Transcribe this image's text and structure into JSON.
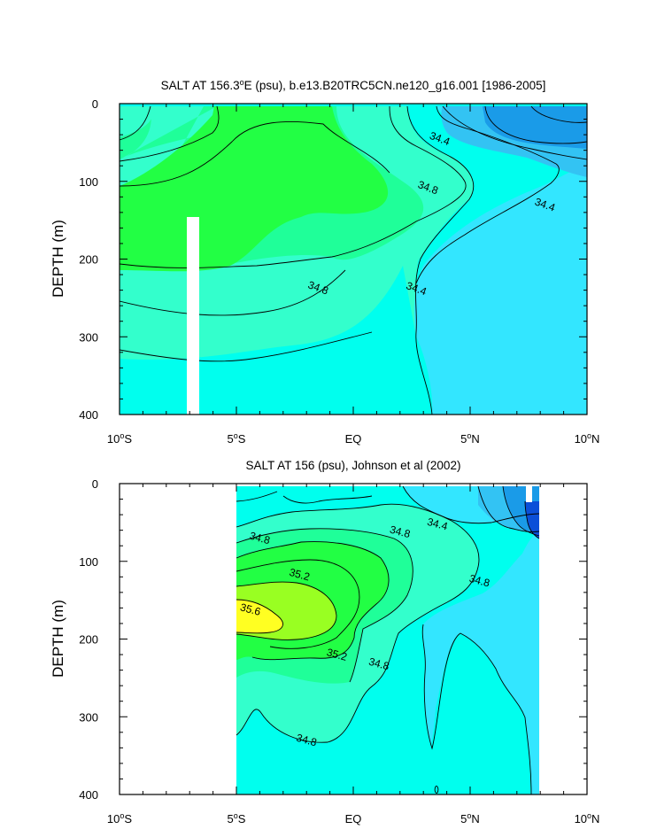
{
  "chart_data": [
    {
      "type": "heatmap",
      "title": "SALT AT 156.3°E (psu), b.e13.B20TRC5CN.ne120_g16.001 [1986-2005]",
      "title_sup": "o",
      "ylabel": "DEPTH (m)",
      "xlabel": "",
      "xlim": [
        -10,
        10
      ],
      "ylim": [
        400,
        0
      ],
      "xticks": [
        -10,
        -5,
        0,
        5,
        10
      ],
      "xtick_labels": [
        [
          "10",
          "o",
          "S"
        ],
        [
          "5",
          "o",
          "S"
        ],
        [
          "EQ",
          "",
          ""
        ],
        [
          "5",
          "o",
          "N"
        ],
        [
          "10",
          "o",
          "N"
        ]
      ],
      "yticks": [
        0,
        100,
        200,
        300,
        400
      ],
      "ytick_labels": [
        "0",
        "100",
        "200",
        "300",
        "400"
      ],
      "contour_interval": 0.2,
      "colors": {
        "fills": [
          "#1a9be8",
          "#33c3f3",
          "#33e6ff",
          "#00ffee",
          "#33ffcc",
          "#1fff99",
          "#22ff44",
          "#99ff22",
          "#ffff22"
        ],
        "line": "#000000",
        "gap": "#ffffff"
      },
      "contour_labels": [
        {
          "text": "34.8",
          "x": -1.5,
          "y": 237
        },
        {
          "text": "34.4",
          "x": 3.7,
          "y": 45
        },
        {
          "text": "34.8",
          "x": 3.2,
          "y": 108
        },
        {
          "text": "34.4",
          "x": 2.7,
          "y": 238
        },
        {
          "text": "34.4",
          "x": 8.2,
          "y": 130
        }
      ],
      "data_gap": {
        "x": [
          -7.5,
          -7.0
        ],
        "depth": [
          145,
          400
        ]
      }
    },
    {
      "type": "heatmap",
      "title": "SALT AT 156 (psu), Johnson et al (2002)",
      "ylabel": "DEPTH (m)",
      "xlabel": "",
      "xlim": [
        -10,
        10
      ],
      "ylim": [
        400,
        0
      ],
      "data_xlim": [
        -5,
        8
      ],
      "xticks": [
        -10,
        -5,
        0,
        5,
        10
      ],
      "xtick_labels": [
        [
          "10",
          "o",
          "S"
        ],
        [
          "5",
          "o",
          "S"
        ],
        [
          "EQ",
          "",
          ""
        ],
        [
          "5",
          "o",
          "N"
        ],
        [
          "10",
          "o",
          "N"
        ]
      ],
      "yticks": [
        0,
        100,
        200,
        300,
        400
      ],
      "ytick_labels": [
        "0",
        "100",
        "200",
        "300",
        "400"
      ],
      "contour_interval": 0.2,
      "contour_labels": [
        {
          "text": "34.8",
          "x": -4.0,
          "y": 70
        },
        {
          "text": "35.2",
          "x": -2.3,
          "y": 117
        },
        {
          "text": "35.6",
          "x": -4.4,
          "y": 162
        },
        {
          "text": "35.2",
          "x": -0.7,
          "y": 220
        },
        {
          "text": "34.8",
          "x": 2.0,
          "y": 62
        },
        {
          "text": "34.4",
          "x": 3.6,
          "y": 52
        },
        {
          "text": "34.8",
          "x": 5.4,
          "y": 125
        },
        {
          "text": "34.8",
          "x": 1.1,
          "y": 232
        },
        {
          "text": "34.8",
          "x": -2.0,
          "y": 330
        }
      ]
    }
  ]
}
